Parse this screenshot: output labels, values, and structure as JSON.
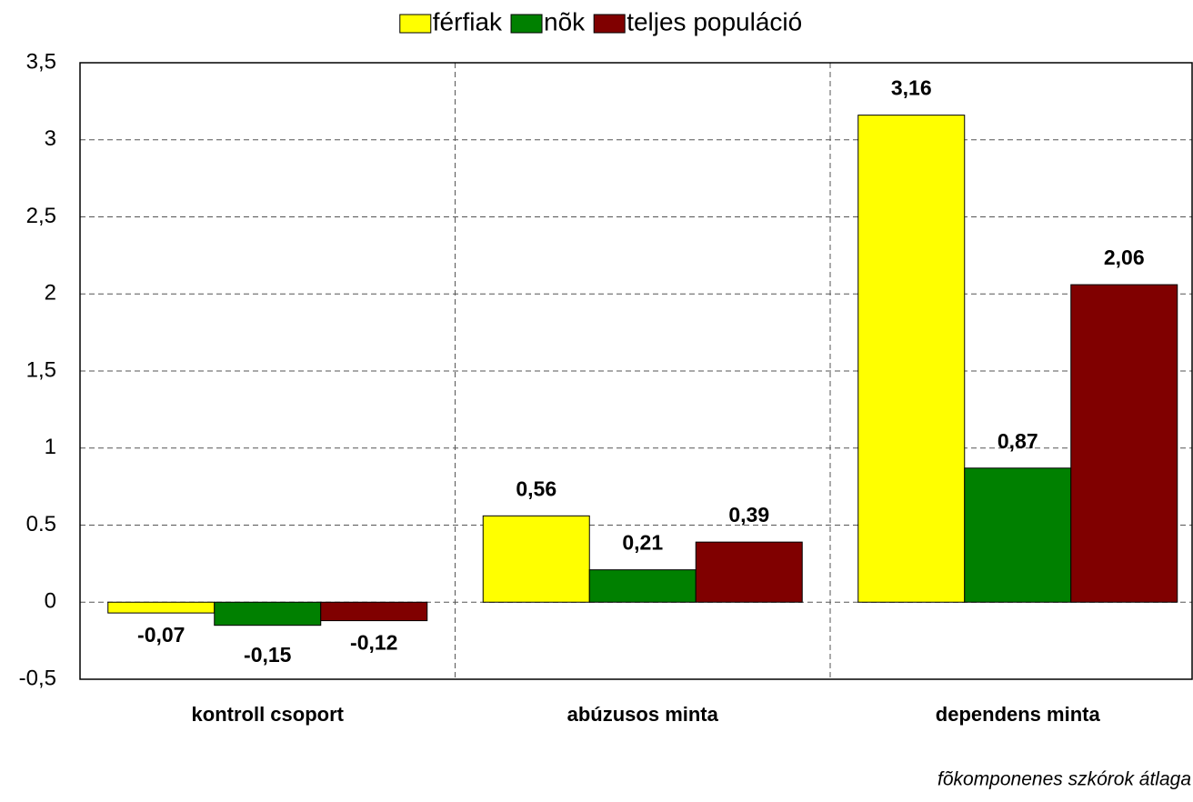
{
  "chart_data": {
    "type": "bar",
    "categories": [
      "kontroll csoport",
      "abúzusos minta",
      "dependens minta"
    ],
    "series": [
      {
        "name": "férfiak",
        "color": "#ffff00",
        "values": [
          -0.07,
          0.56,
          3.16
        ],
        "value_labels": [
          "-0,07",
          "0,56",
          "3,16"
        ]
      },
      {
        "name": "nõk",
        "color": "#008000",
        "values": [
          -0.15,
          0.21,
          0.87
        ],
        "value_labels": [
          "-0,15",
          "0,21",
          "0,87"
        ]
      },
      {
        "name": "teljes populáció",
        "color": "#800000",
        "values": [
          -0.12,
          0.39,
          2.06
        ],
        "value_labels": [
          "-0,12",
          "0,39",
          "2,06"
        ]
      }
    ],
    "ylim": [
      -0.5,
      3.5
    ],
    "yticks": [
      {
        "value": -0.5,
        "label": "-0,5"
      },
      0,
      0.5,
      1,
      {
        "value": 1.5,
        "label": "1,5"
      },
      2,
      {
        "value": 2.5,
        "label": "2,5"
      },
      3,
      {
        "value": 3.5,
        "label": "3,5"
      }
    ],
    "grid": true,
    "legend": "top",
    "annotation": "fõkomponenes szkórok átlaga"
  }
}
